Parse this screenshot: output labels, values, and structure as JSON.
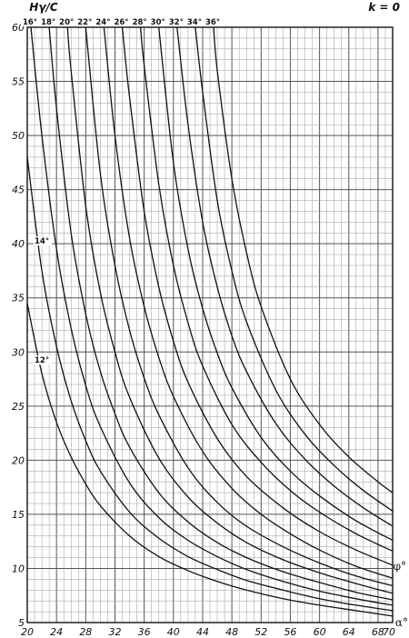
{
  "chart_data": {
    "type": "line",
    "title": "",
    "xlabel": "α°",
    "ylabel": "Hγ/C",
    "curve_symbol": "φ°",
    "annotation": "k = 0",
    "xlim": [
      20,
      70
    ],
    "ylim": [
      5,
      60
    ],
    "x_ticks": [
      20,
      24,
      28,
      32,
      36,
      40,
      44,
      48,
      52,
      56,
      60,
      64,
      68,
      70
    ],
    "y_ticks": [
      5,
      10,
      15,
      20,
      25,
      30,
      35,
      40,
      45,
      50,
      55,
      60
    ],
    "grid": true,
    "series": [
      {
        "name": "12°",
        "x": [
          20,
          22,
          24,
          26,
          28,
          30,
          34,
          38,
          42,
          46,
          50,
          55,
          60,
          65,
          70
        ],
        "y": [
          34.5,
          28.0,
          23.5,
          20.3,
          17.8,
          15.8,
          13.0,
          11.1,
          9.8,
          8.8,
          8.0,
          7.2,
          6.6,
          6.1,
          5.6
        ]
      },
      {
        "name": "14°",
        "x": [
          20,
          22,
          24,
          26,
          28,
          30,
          34,
          38,
          42,
          46,
          50,
          55,
          60,
          65,
          70
        ],
        "y": [
          48.0,
          37.5,
          30.5,
          25.5,
          21.8,
          19.0,
          15.2,
          12.8,
          11.1,
          9.9,
          8.9,
          8.0,
          7.2,
          6.6,
          6.1
        ]
      },
      {
        "name": "16°",
        "x": [
          20.5,
          22,
          24,
          26,
          28,
          30,
          34,
          38,
          42,
          46,
          50,
          55,
          60,
          65,
          70
        ],
        "y": [
          60.0,
          50.0,
          39.5,
          32.2,
          26.9,
          23.1,
          17.9,
          14.7,
          12.6,
          11.1,
          9.9,
          8.8,
          7.9,
          7.2,
          6.6
        ]
      },
      {
        "name": "18°",
        "x": [
          23,
          24,
          26,
          28,
          30,
          32,
          34,
          38,
          42,
          46,
          50,
          55,
          60,
          65,
          70
        ],
        "y": [
          60.0,
          52.5,
          41.0,
          33.5,
          28.2,
          24.3,
          21.2,
          17.0,
          14.3,
          12.4,
          11.0,
          9.7,
          8.7,
          7.8,
          7.1
        ]
      },
      {
        "name": "20°",
        "x": [
          25.5,
          26,
          28,
          30,
          32,
          34,
          38,
          42,
          46,
          50,
          55,
          60,
          65,
          70
        ],
        "y": [
          60.0,
          56.0,
          43.5,
          35.5,
          30.0,
          25.8,
          20.2,
          16.6,
          14.2,
          12.4,
          10.8,
          9.6,
          8.6,
          7.7
        ]
      },
      {
        "name": "22°",
        "x": [
          28,
          30,
          32,
          34,
          36,
          38,
          42,
          46,
          50,
          55,
          60,
          65,
          70
        ],
        "y": [
          60.0,
          46.5,
          38.0,
          32.0,
          27.6,
          24.2,
          19.3,
          16.1,
          13.9,
          12.0,
          10.5,
          9.3,
          8.4
        ]
      },
      {
        "name": "24°",
        "x": [
          30.5,
          32,
          34,
          36,
          38,
          40,
          44,
          48,
          52,
          56,
          60,
          65,
          70
        ],
        "y": [
          60.0,
          50.0,
          40.5,
          34.2,
          29.5,
          25.9,
          20.8,
          17.4,
          15.0,
          13.2,
          11.7,
          10.2,
          9.1
        ]
      },
      {
        "name": "26°",
        "x": [
          33,
          34,
          36,
          38,
          40,
          42,
          46,
          50,
          55,
          60,
          65,
          70
        ],
        "y": [
          60.0,
          53.5,
          43.0,
          36.0,
          31.0,
          27.2,
          22.0,
          18.5,
          15.6,
          13.4,
          11.7,
          10.3
        ]
      },
      {
        "name": "28°",
        "x": [
          35.5,
          36,
          38,
          40,
          42,
          44,
          48,
          52,
          56,
          60,
          65,
          70
        ],
        "y": [
          60.0,
          56.5,
          45.5,
          38.0,
          32.7,
          28.7,
          23.3,
          19.8,
          17.2,
          15.2,
          13.2,
          11.6
        ]
      },
      {
        "name": "30°",
        "x": [
          38,
          40,
          42,
          44,
          46,
          48,
          52,
          56,
          60,
          65,
          70
        ],
        "y": [
          60.0,
          47.5,
          39.5,
          34.0,
          29.9,
          26.7,
          22.1,
          19.0,
          16.7,
          14.4,
          12.6
        ]
      },
      {
        "name": "32°",
        "x": [
          40.5,
          42,
          44,
          46,
          48,
          50,
          54,
          58,
          62,
          66,
          70
        ],
        "y": [
          60.0,
          51.0,
          42.0,
          36.0,
          31.5,
          28.2,
          23.4,
          20.1,
          17.6,
          15.6,
          13.9
        ]
      },
      {
        "name": "34°",
        "x": [
          43,
          44,
          46,
          48,
          50,
          54,
          58,
          62,
          66,
          70
        ],
        "y": [
          60.0,
          54.0,
          44.0,
          37.5,
          32.8,
          26.5,
          22.4,
          19.5,
          17.2,
          15.3
        ]
      },
      {
        "name": "36°",
        "x": [
          45.5,
          46,
          48,
          50,
          52,
          56,
          60,
          64,
          68,
          70
        ],
        "y": [
          60.0,
          56.0,
          46.0,
          39.2,
          34.2,
          27.5,
          23.3,
          20.3,
          18.0,
          17.0
        ]
      }
    ]
  }
}
